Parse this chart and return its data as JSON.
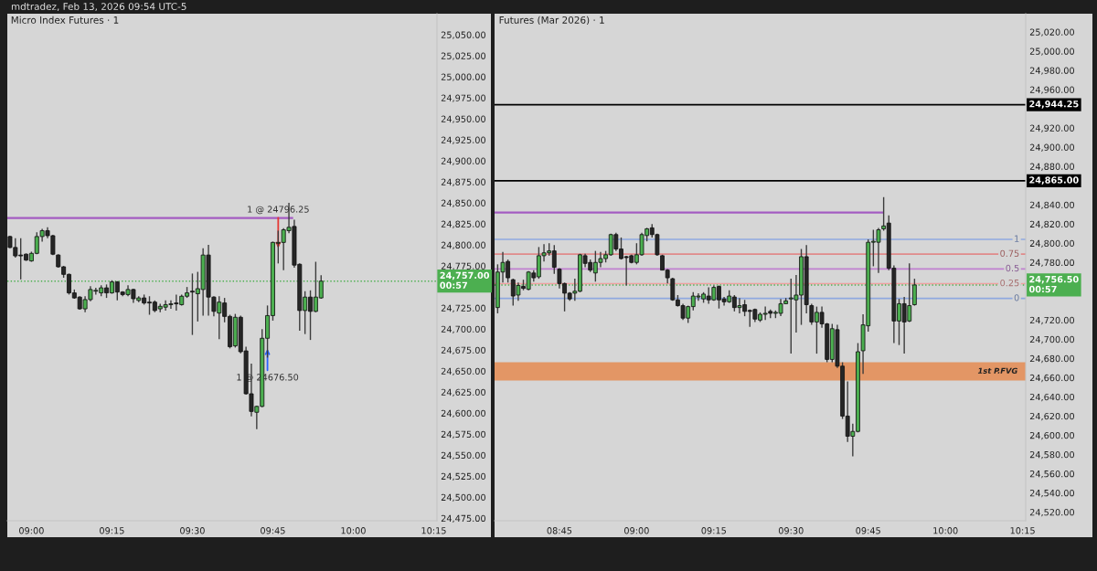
{
  "chart_data": [
    {
      "type": "candlestick",
      "title": "Micro Index Futures · 1",
      "annotations": [
        "mdtradez, Feb 13, 2026 09:54 UTC-5",
        {
          "text": "1 @ 24796.25",
          "x": 9.7667,
          "y": 24796.25
        },
        {
          "text": "1 @ 24676.50",
          "x": 9.7333,
          "y": 24676.5
        }
      ],
      "x": [
        8.9333,
        8.95,
        8.9667,
        8.9833,
        9.0,
        9.0167,
        9.0333,
        9.05,
        9.0667,
        9.0833,
        9.1,
        9.1167,
        9.1333,
        9.15,
        9.1667,
        9.1833,
        9.2,
        9.2167,
        9.2333,
        9.25,
        9.2667,
        9.2833,
        9.3,
        9.3167,
        9.3333,
        9.35,
        9.3667,
        9.3833,
        9.4,
        9.4167,
        9.4333,
        9.45,
        9.4667,
        9.4833,
        9.5,
        9.5167,
        9.5333,
        9.55,
        9.5667,
        9.5833,
        9.6,
        9.6167,
        9.6333,
        9.65,
        9.6667,
        9.6833,
        9.7,
        9.7167,
        9.7333,
        9.75,
        9.7667,
        9.7833,
        9.8,
        9.8167,
        9.8333,
        9.85,
        9.8667,
        9.8833,
        9.9
      ],
      "ohlc": [
        [
          24810,
          24811,
          24796,
          24797
        ],
        [
          24797,
          24808,
          24785,
          24787
        ],
        [
          24788,
          24808,
          24759,
          24787
        ],
        [
          24789,
          24790,
          24781,
          24782
        ],
        [
          24781,
          24792,
          24780,
          24790
        ],
        [
          24790,
          24815,
          24789,
          24810
        ],
        [
          24810,
          24819,
          24804,
          24817
        ],
        [
          24817,
          24821,
          24808,
          24811
        ],
        [
          24811,
          24812,
          24788,
          24789
        ],
        [
          24788,
          24789,
          24773,
          24774
        ],
        [
          24774,
          24775,
          24761,
          24765
        ],
        [
          24765,
          24766,
          24741,
          24743
        ],
        [
          24743,
          24747,
          24736,
          24737
        ],
        [
          24738,
          24739,
          24723,
          24724
        ],
        [
          24724,
          24739,
          24720,
          24735
        ],
        [
          24735,
          24751,
          24733,
          24747
        ],
        [
          24745,
          24749,
          24741,
          24746
        ],
        [
          24743,
          24752,
          24739,
          24749
        ],
        [
          24749,
          24753,
          24737,
          24743
        ],
        [
          24743,
          24758,
          24742,
          24756
        ],
        [
          24756,
          24757,
          24734,
          24744
        ],
        [
          24744,
          24745,
          24739,
          24741
        ],
        [
          24741,
          24752,
          24739,
          24747
        ],
        [
          24747,
          24748,
          24731,
          24736
        ],
        [
          24734,
          24739,
          24732,
          24737
        ],
        [
          24737,
          24741,
          24729,
          24731
        ],
        [
          24732,
          24739,
          24717,
          24731
        ],
        [
          24732,
          24734,
          24720,
          24722
        ],
        [
          24724,
          24730,
          24720,
          24727
        ],
        [
          24726,
          24734,
          24722,
          24729
        ],
        [
          24729,
          24734,
          24724,
          24730
        ],
        [
          24731,
          24741,
          24722,
          24730
        ],
        [
          24729,
          24741,
          24728,
          24739
        ],
        [
          24739,
          24750,
          24737,
          24743
        ],
        [
          24745,
          24766,
          24693,
          24744
        ],
        [
          24742,
          24768,
          24709,
          24748
        ],
        [
          24747,
          24796,
          24716,
          24788
        ],
        [
          24788,
          24800,
          24716,
          24738
        ],
        [
          24738,
          24739,
          24715,
          24721
        ],
        [
          24719,
          24739,
          24688,
          24732
        ],
        [
          24731,
          24737,
          24708,
          24715
        ],
        [
          24715,
          24717,
          24677,
          24679
        ],
        [
          24680,
          24718,
          24678,
          24714
        ],
        [
          24714,
          24716,
          24671,
          24673
        ],
        [
          24674,
          24679,
          24622,
          24623
        ],
        [
          24623,
          24659,
          24596,
          24602
        ],
        [
          24601,
          24609,
          24581,
          24608
        ],
        [
          24608,
          24700,
          24607,
          24689
        ],
        [
          24689,
          24728,
          24666,
          24716
        ],
        [
          24716,
          24804,
          24710,
          24803
        ],
        [
          24802,
          24817,
          24778,
          24803
        ],
        [
          24803,
          24820,
          24770,
          24818
        ],
        [
          24817,
          24850,
          24814,
          24821
        ],
        [
          24822,
          24830,
          24773,
          24776
        ],
        [
          24777,
          24778,
          24698,
          24722
        ],
        [
          24722,
          24745,
          24694,
          24738
        ],
        [
          24738,
          24746,
          24687,
          24721
        ],
        [
          24721,
          24780,
          24720,
          24738
        ],
        [
          24737,
          24764,
          24736,
          24757
        ]
      ],
      "series": [
        {
          "type": "line",
          "x": [
            8.925,
            9.81
          ],
          "values": [
            24832,
            24832
          ],
          "color": "#a45cc2"
        }
      ],
      "ref_lines": [
        {
          "axis": "y",
          "value": 24757,
          "label": "24,757.00\n00:57",
          "color": "#4caf50",
          "line_style": "dotted"
        }
      ],
      "xlim": [
        8.925,
        10.26
      ],
      "ylim": [
        24472,
        25075
      ],
      "xticks": [
        {
          "value": 9.0,
          "label": "09:00"
        },
        {
          "value": 9.25,
          "label": "09:15"
        },
        {
          "value": 9.5,
          "label": "09:30"
        },
        {
          "value": 9.75,
          "label": "09:45"
        },
        {
          "value": 10.0,
          "label": "10:00"
        },
        {
          "value": 10.25,
          "label": "10:15"
        }
      ],
      "yticks": [
        {
          "value": 24475,
          "label": "24,475.00"
        },
        {
          "value": 24500,
          "label": "24,500.00"
        },
        {
          "value": 24525,
          "label": "24,525.00"
        },
        {
          "value": 24550,
          "label": "24,550.00"
        },
        {
          "value": 24575,
          "label": "24,575.00"
        },
        {
          "value": 24600,
          "label": "24,600.00"
        },
        {
          "value": 24625,
          "label": "24,625.00"
        },
        {
          "value": 24650,
          "label": "24,650.00"
        },
        {
          "value": 24675,
          "label": "24,675.00"
        },
        {
          "value": 24700,
          "label": "24,700.00"
        },
        {
          "value": 24725,
          "label": "24,725.00"
        },
        {
          "value": 24775,
          "label": "24,775.00"
        },
        {
          "value": 24800,
          "label": "24,800.00"
        },
        {
          "value": 24825,
          "label": "24,825.00"
        },
        {
          "value": 24850,
          "label": "24,850.00"
        },
        {
          "value": 24875,
          "label": "24,875.00"
        },
        {
          "value": 24900,
          "label": "24,900.00"
        },
        {
          "value": 24925,
          "label": "24,925.00"
        },
        {
          "value": 24950,
          "label": "24,950.00"
        },
        {
          "value": 24975,
          "label": "24,975.00"
        },
        {
          "value": 25000,
          "label": "25,000.00"
        },
        {
          "value": 25025,
          "label": "25,025.00"
        },
        {
          "value": 25050,
          "label": "25,050.00"
        }
      ]
    },
    {
      "type": "candlestick",
      "title": "Futures (Mar 2026) · 1",
      "annotations": [
        {
          "text": "1",
          "x": 10.24,
          "y": 24804
        },
        {
          "text": "0.75",
          "x": 10.24,
          "y": 24788.6
        },
        {
          "text": "0.5",
          "x": 10.24,
          "y": 24773.25
        },
        {
          "text": "0.25",
          "x": 10.24,
          "y": 24757.9
        },
        {
          "text": "0",
          "x": 10.24,
          "y": 24742.5
        }
      ],
      "x": [
        8.55,
        8.5667,
        8.5833,
        8.6,
        8.6167,
        8.6333,
        8.65,
        8.6667,
        8.6833,
        8.7,
        8.7167,
        8.7333,
        8.75,
        8.7667,
        8.7833,
        8.8,
        8.8167,
        8.8333,
        8.85,
        8.8667,
        8.8833,
        8.9,
        8.9167,
        8.9333,
        8.95,
        8.9667,
        8.9833,
        9.0,
        9.0167,
        9.0333,
        9.05,
        9.0667,
        9.0833,
        9.1,
        9.1167,
        9.1333,
        9.15,
        9.1667,
        9.1833,
        9.2,
        9.2167,
        9.2333,
        9.25,
        9.2667,
        9.2833,
        9.3,
        9.3167,
        9.3333,
        9.35,
        9.3667,
        9.3833,
        9.4,
        9.4167,
        9.4333,
        9.45,
        9.4667,
        9.4833,
        9.5,
        9.5167,
        9.5333,
        9.55,
        9.5667,
        9.5833,
        9.6,
        9.6167,
        9.6333,
        9.65,
        9.6667,
        9.6833,
        9.7,
        9.7167,
        9.7333,
        9.75,
        9.7667,
        9.7833,
        9.8,
        9.8167,
        9.8333,
        9.85,
        9.8667,
        9.8833,
        9.9
      ],
      "ohlc": [
        [
          24733,
          24778,
          24727,
          24770
        ],
        [
          24770,
          24791,
          24759,
          24780
        ],
        [
          24781,
          24783,
          24759,
          24764
        ],
        [
          24762,
          24763,
          24735,
          24745
        ],
        [
          24746,
          24759,
          24740,
          24756
        ],
        [
          24755,
          24762,
          24751,
          24753
        ],
        [
          24752,
          24771,
          24751,
          24770
        ],
        [
          24769,
          24772,
          24760,
          24764
        ],
        [
          24765,
          24796,
          24763,
          24787
        ],
        [
          24787,
          24799,
          24781,
          24790
        ],
        [
          24790,
          24800,
          24787,
          24792
        ],
        [
          24792,
          24798,
          24768,
          24775
        ],
        [
          24773,
          24774,
          24753,
          24758
        ],
        [
          24758,
          24759,
          24729,
          24748
        ],
        [
          24748,
          24749,
          24740,
          24742
        ],
        [
          24748,
          24763,
          24740,
          24750
        ],
        [
          24750,
          24789,
          24749,
          24788
        ],
        [
          24787,
          24789,
          24775,
          24779
        ],
        [
          24780,
          24783,
          24770,
          24772
        ],
        [
          24769,
          24792,
          24760,
          24780
        ],
        [
          24780,
          24791,
          24775,
          24784
        ],
        [
          24784,
          24792,
          24780,
          24788
        ],
        [
          24788,
          24810,
          24787,
          24809
        ],
        [
          24809,
          24811,
          24792,
          24794
        ],
        [
          24794,
          24806,
          24783,
          24784
        ],
        [
          24786,
          24787,
          24756,
          24785
        ],
        [
          24787,
          24788,
          24779,
          24780
        ],
        [
          24780,
          24800,
          24778,
          24788
        ],
        [
          24788,
          24811,
          24787,
          24809
        ],
        [
          24808,
          24816,
          24802,
          24815
        ],
        [
          24816,
          24820,
          24806,
          24809
        ],
        [
          24809,
          24810,
          24787,
          24788
        ],
        [
          24787,
          24788,
          24772,
          24772
        ],
        [
          24772,
          24773,
          24758,
          24764
        ],
        [
          24763,
          24764,
          24740,
          24741
        ],
        [
          24741,
          24746,
          24734,
          24735
        ],
        [
          24735,
          24737,
          24720,
          24722
        ],
        [
          24722,
          24735,
          24717,
          24734
        ],
        [
          24734,
          24749,
          24730,
          24745
        ],
        [
          24744,
          24748,
          24740,
          24745
        ],
        [
          24742,
          24749,
          24738,
          24747
        ],
        [
          24745,
          24754,
          24737,
          24741
        ],
        [
          24741,
          24756,
          24740,
          24754
        ],
        [
          24755,
          24756,
          24732,
          24741
        ],
        [
          24742,
          24744,
          24735,
          24739
        ],
        [
          24739,
          24751,
          24738,
          24745
        ],
        [
          24744,
          24746,
          24729,
          24733
        ],
        [
          24733,
          24743,
          24727,
          24735
        ],
        [
          24736,
          24741,
          24724,
          24729
        ],
        [
          24730,
          24731,
          24713,
          24729
        ],
        [
          24731,
          24732,
          24718,
          24721
        ],
        [
          24720,
          24728,
          24718,
          24726
        ],
        [
          24726,
          24734,
          24720,
          24727
        ],
        [
          24729,
          24731,
          24722,
          24727
        ],
        [
          24727,
          24730,
          24722,
          24728
        ],
        [
          24727,
          24742,
          24724,
          24737
        ],
        [
          24737,
          24743,
          24737,
          24740
        ],
        [
          24742,
          24763,
          24685,
          24743
        ],
        [
          24741,
          24767,
          24707,
          24746
        ],
        [
          24746,
          24794,
          24715,
          24786
        ],
        [
          24786,
          24798,
          24727,
          24736
        ],
        [
          24735,
          24737,
          24715,
          24718
        ],
        [
          24718,
          24734,
          24685,
          24728
        ],
        [
          24728,
          24734,
          24712,
          24716
        ],
        [
          24716,
          24717,
          24676,
          24679
        ],
        [
          24679,
          24716,
          24676,
          24711
        ],
        [
          24710,
          24715,
          24670,
          24672
        ],
        [
          24672,
          24676,
          24617,
          24620
        ],
        [
          24620,
          24656,
          24593,
          24599
        ],
        [
          24599,
          24612,
          24578,
          24604
        ],
        [
          24604,
          24696,
          24603,
          24687
        ],
        [
          24688,
          24726,
          24664,
          24715
        ],
        [
          24714,
          24804,
          24708,
          24801
        ],
        [
          24801,
          24814,
          24776,
          24802
        ],
        [
          24801,
          24816,
          24769,
          24814
        ],
        [
          24815,
          24848,
          24813,
          24818
        ],
        [
          24821,
          24829,
          24772,
          24774
        ],
        [
          24774,
          24777,
          24696,
          24719
        ],
        [
          24719,
          24742,
          24694,
          24737
        ],
        [
          24737,
          24744,
          24685,
          24718
        ],
        [
          24719,
          24779,
          24718,
          24735
        ],
        [
          24736,
          24763,
          24735,
          24756.5
        ]
      ],
      "series": [
        {
          "type": "line",
          "x": [
            8.54,
            9.7967
          ],
          "values": [
            24832,
            24832
          ],
          "color": "#a45cc2"
        }
      ],
      "ref_lines": [
        {
          "axis": "y",
          "value": 24944.25,
          "label": "24,944.25",
          "color": "#000000"
        },
        {
          "axis": "y",
          "value": 24865,
          "label": "24,865.00",
          "color": "#000000"
        },
        {
          "axis": "y",
          "value": 24804,
          "color": "#8fa8e0"
        },
        {
          "axis": "y",
          "value": 24788.6,
          "color": "#e08a8a"
        },
        {
          "axis": "y",
          "value": 24773.25,
          "color": "#c080d0"
        },
        {
          "axis": "y",
          "value": 24757.9,
          "color": "#f0a0a0"
        },
        {
          "axis": "y",
          "value": 24742.5,
          "color": "#8fa8e0"
        },
        {
          "axis": "y",
          "value": 24756.5,
          "label": "24,756.50\n00:57",
          "color": "#4caf50",
          "line_style": "dotted"
        }
      ],
      "bands": [
        {
          "axis": "y",
          "from": 24657,
          "to": 24676,
          "label": "1st P.FVG",
          "color": "#e4925f"
        }
      ],
      "xlim": [
        8.54,
        10.26
      ],
      "ylim": [
        24511,
        25039
      ],
      "xticks": [
        {
          "value": 8.75,
          "label": "08:45"
        },
        {
          "value": 9.0,
          "label": "09:00"
        },
        {
          "value": 9.25,
          "label": "09:15"
        },
        {
          "value": 9.5,
          "label": "09:30"
        },
        {
          "value": 9.75,
          "label": "09:45"
        },
        {
          "value": 10.0,
          "label": "10:00"
        },
        {
          "value": 10.25,
          "label": "10:15"
        }
      ],
      "yticks": [
        {
          "value": 24520,
          "label": "24,520.00"
        },
        {
          "value": 24540,
          "label": "24,540.00"
        },
        {
          "value": 24560,
          "label": "24,560.00"
        },
        {
          "value": 24580,
          "label": "24,580.00"
        },
        {
          "value": 24600,
          "label": "24,600.00"
        },
        {
          "value": 24620,
          "label": "24,620.00"
        },
        {
          "value": 24640,
          "label": "24,640.00"
        },
        {
          "value": 24660,
          "label": "24,660.00"
        },
        {
          "value": 24680,
          "label": "24,680.00"
        },
        {
          "value": 24700,
          "label": "24,700.00"
        },
        {
          "value": 24720,
          "label": "24,720.00"
        },
        {
          "value": 24780,
          "label": "24,780.00"
        },
        {
          "value": 24800,
          "label": "24,800.00"
        },
        {
          "value": 24820,
          "label": "24,820.00"
        },
        {
          "value": 24840,
          "label": "24,840.00"
        },
        {
          "value": 24880,
          "label": "24,880.00"
        },
        {
          "value": 24900,
          "label": "24,900.00"
        },
        {
          "value": 24920,
          "label": "24,920.00"
        },
        {
          "value": 24960,
          "label": "24,960.00"
        },
        {
          "value": 24980,
          "label": "24,980.00"
        },
        {
          "value": 25000,
          "label": "25,000.00"
        },
        {
          "value": 25020,
          "label": "25,020.00"
        }
      ]
    }
  ]
}
